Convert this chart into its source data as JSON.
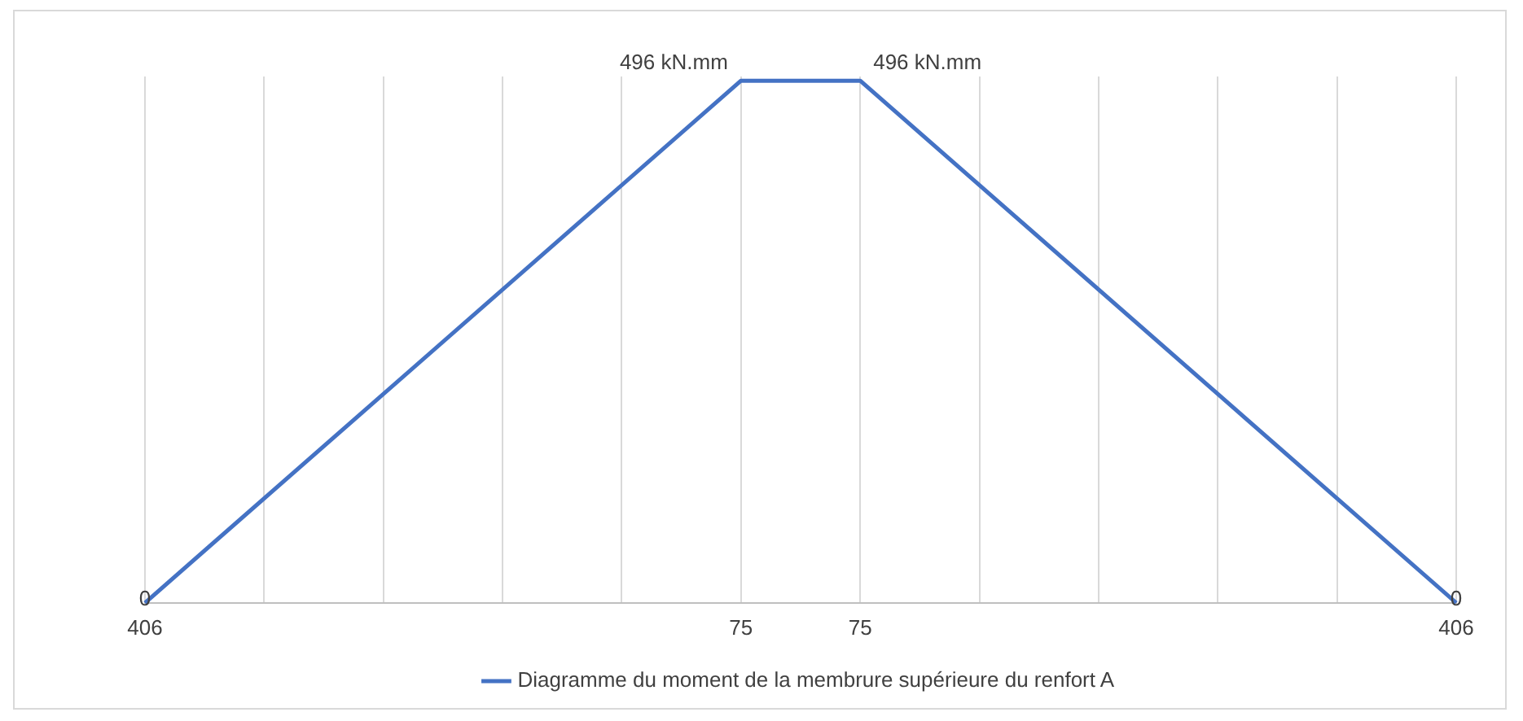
{
  "chart_data": {
    "type": "line",
    "categories": [
      "406",
      null,
      null,
      null,
      null,
      "75",
      "75",
      null,
      null,
      null,
      null,
      "406"
    ],
    "series": [
      {
        "name": "Diagramme du moment de la membrure supérieure du renfort A",
        "color": "#4472c4",
        "values": [
          0,
          null,
          null,
          null,
          null,
          496,
          496,
          null,
          null,
          null,
          null,
          0
        ],
        "value_labels": [
          "0",
          null,
          null,
          null,
          null,
          "496 kN.mm",
          "496 kN.mm",
          null,
          null,
          null,
          null,
          "0"
        ]
      }
    ],
    "grid": "x",
    "legend": "bottom",
    "tick_labels": "x"
  }
}
